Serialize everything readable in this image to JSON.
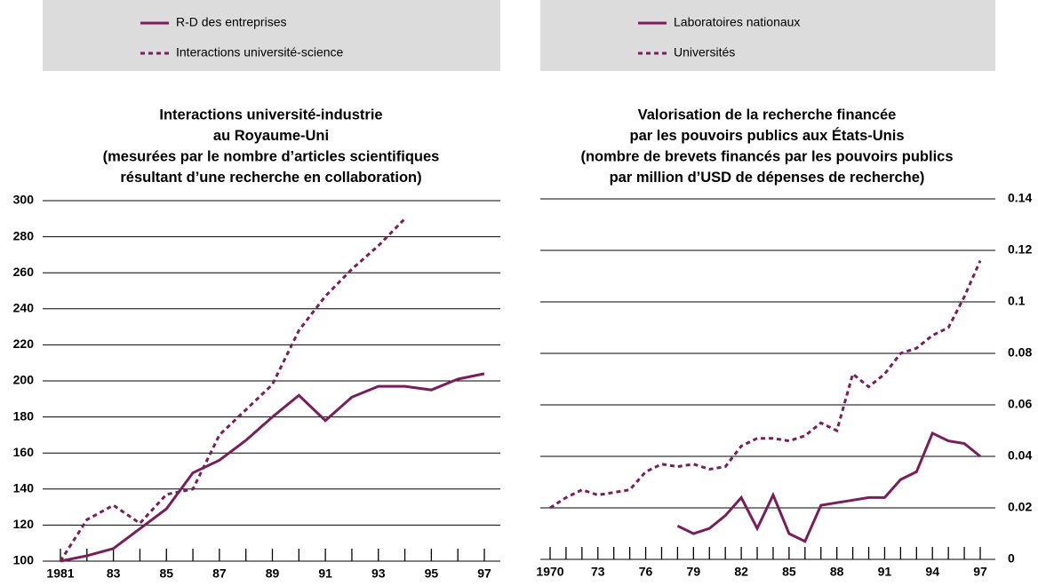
{
  "chart_data": [
    {
      "type": "line",
      "title": [
        "Interactions université-industrie",
        "au Royaume-Uni",
        "(mesurées par le nombre d’articles scientifiques",
        "résultant d’une recherche en collaboration)"
      ],
      "categories": [
        "1981",
        null,
        "83",
        null,
        "85",
        null,
        "87",
        null,
        "89",
        null,
        "91",
        null,
        "93",
        null,
        "95",
        null,
        "97"
      ],
      "series": [
        {
          "name": "R-D des entreprises",
          "color": "#7a1e5a",
          "line_style": "solid",
          "values": [
            100,
            103,
            107,
            118,
            129,
            149,
            156,
            167,
            180,
            192,
            178,
            191,
            197,
            197,
            195,
            201,
            204
          ]
        },
        {
          "name": "Interactions université-science",
          "color": "#7a1e5a",
          "line_style": "dashed",
          "values": [
            100,
            123,
            131,
            121,
            137,
            140,
            170,
            184,
            198,
            228,
            247,
            262,
            275,
            290,
            null,
            null,
            null
          ]
        }
      ],
      "ylim": [
        100,
        300
      ],
      "yticks": [
        100,
        120,
        140,
        160,
        180,
        200,
        220,
        240,
        260,
        280,
        300
      ],
      "y_axis_position": "left",
      "grid": true
    },
    {
      "type": "line",
      "title": [
        "Valorisation de la recherche financée",
        "par les pouvoirs publics aux États-Unis",
        "(nombre de brevets financés par les pouvoirs publics",
        "par million d’USD de dépenses de recherche)"
      ],
      "categories": [
        "1970",
        null,
        null,
        "73",
        null,
        null,
        "76",
        null,
        null,
        "79",
        null,
        null,
        "82",
        null,
        null,
        "85",
        null,
        null,
        "88",
        null,
        null,
        "91",
        null,
        null,
        "94",
        null,
        null,
        "97"
      ],
      "series": [
        {
          "name": "Laboratoires nationaux",
          "color": "#7a1e5a",
          "line_style": "solid",
          "values": [
            null,
            null,
            null,
            null,
            null,
            null,
            null,
            null,
            0.013,
            0.01,
            0.012,
            0.017,
            0.024,
            0.012,
            0.025,
            0.01,
            0.007,
            0.021,
            0.022,
            0.023,
            0.024,
            0.024,
            0.031,
            0.034,
            0.049,
            0.046,
            0.045,
            0.04
          ]
        },
        {
          "name": "Universités",
          "color": "#7a1e5a",
          "line_style": "dashed",
          "values": [
            0.02,
            0.024,
            0.027,
            0.025,
            0.026,
            0.027,
            0.034,
            0.037,
            0.036,
            0.037,
            0.035,
            0.036,
            0.044,
            0.047,
            0.047,
            0.046,
            0.048,
            0.053,
            0.05,
            0.072,
            0.067,
            0.072,
            0.08,
            0.082,
            0.087,
            0.09,
            0.102,
            0.116
          ]
        }
      ],
      "ylim": [
        0,
        0.14
      ],
      "yticks": [
        0,
        0.02,
        0.04,
        0.06,
        0.08,
        0.1,
        0.12,
        0.14
      ],
      "y_axis_position": "right",
      "grid": true
    }
  ]
}
